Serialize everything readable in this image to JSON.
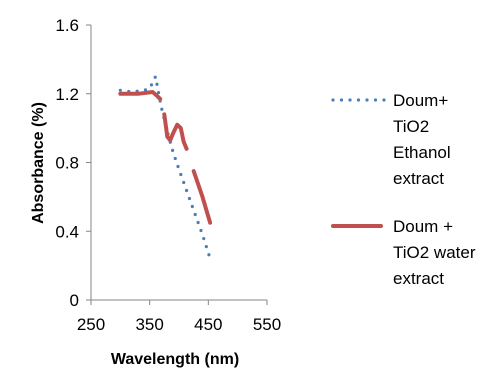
{
  "chart_data": {
    "type": "line",
    "title": "",
    "xlabel": "Wavelength (nm)",
    "ylabel": "Absorbance (%)",
    "xlim": [
      250,
      550
    ],
    "ylim": [
      0,
      1.6
    ],
    "x_ticks": [
      250,
      350,
      450,
      550
    ],
    "y_ticks": [
      0,
      0.4,
      0.8,
      1.2,
      1.6
    ],
    "x_tick_labels": [
      "250",
      "350",
      "450",
      "550"
    ],
    "y_tick_labels": [
      "0",
      "0.4",
      "0.8",
      "1.2",
      "1.6"
    ],
    "grid": false,
    "legend_position": "right",
    "series": [
      {
        "name": "Doum+ TiO2 Ethanol extract",
        "legend_lines": [
          "Doum+",
          "TiO2",
          "Ethanol",
          "extract"
        ],
        "style": "dotted",
        "color": "#4A7EBB",
        "points": [
          [
            300,
            1.22
          ],
          [
            320,
            1.21
          ],
          [
            340,
            1.22
          ],
          [
            350,
            1.23
          ],
          [
            360,
            1.3
          ],
          [
            370,
            1.12
          ],
          [
            380,
            0.98
          ],
          [
            390,
            0.86
          ],
          [
            400,
            0.76
          ],
          [
            420,
            0.57
          ],
          [
            440,
            0.38
          ],
          [
            455,
            0.22
          ]
        ]
      },
      {
        "name": "Doum + TiO2 water extract",
        "legend_lines": [
          "Doum +",
          "TiO2 water",
          "extract"
        ],
        "style": "solid",
        "color": "#C0504D",
        "segments": [
          [
            [
              300,
              1.2
            ],
            [
              330,
              1.2
            ],
            [
              355,
              1.21
            ],
            [
              362,
              1.19
            ],
            [
              368,
              1.17
            ]
          ],
          [
            [
              375,
              1.08
            ],
            [
              380,
              0.95
            ],
            [
              385,
              0.93
            ],
            [
              390,
              0.97
            ],
            [
              397,
              1.02
            ],
            [
              403,
              1.0
            ],
            [
              408,
              0.92
            ],
            [
              413,
              0.88
            ]
          ],
          [
            [
              425,
              0.75
            ],
            [
              440,
              0.6
            ],
            [
              453,
              0.45
            ]
          ]
        ]
      }
    ]
  }
}
